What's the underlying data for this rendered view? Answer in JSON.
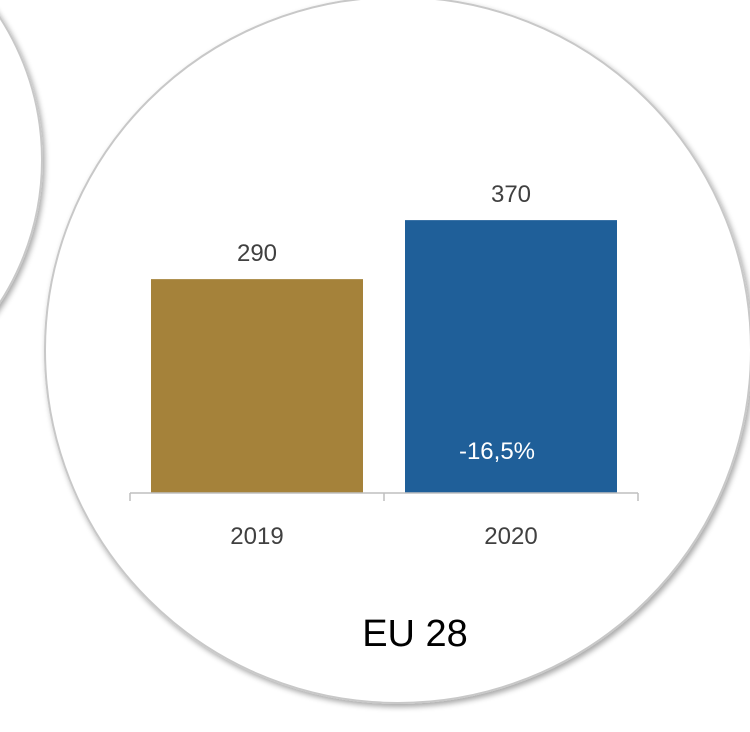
{
  "chart_data": {
    "type": "bar",
    "categories": [
      "2019",
      "2020"
    ],
    "values": [
      290,
      370
    ],
    "value_labels": [
      "290",
      "370"
    ],
    "bar_colors": [
      "#A5823A",
      "#1F5F99"
    ],
    "inner_annotation": "-16,5%",
    "region_label": "EU 28",
    "ylim": [
      0,
      450
    ],
    "grid": false,
    "legend": "none"
  }
}
